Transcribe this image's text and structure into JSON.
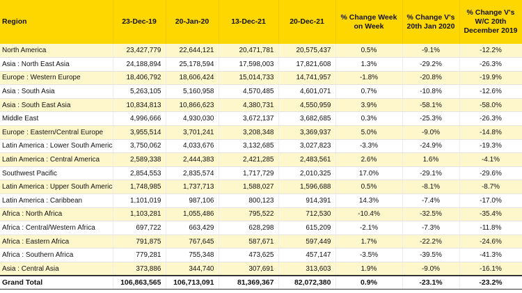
{
  "headers": {
    "region": "Region",
    "d1": "23-Dec-19",
    "d2": "20-Jan-20",
    "d3": "13-Dec-21",
    "d4": "20-Dec-21",
    "wk": "% Change Week on Week",
    "jan": "% Change V's 20th Jan 2020",
    "dec": "% Change V's W/C 20th December 2019"
  },
  "colors": {
    "header_bg": "#ffd700",
    "band": "#fff7cc"
  },
  "rows": [
    {
      "region": "North America",
      "d1": "23,427,779",
      "d2": "22,644,121",
      "d3": "20,471,781",
      "d4": "20,575,437",
      "wk": "0.5%",
      "jan": "-9.1%",
      "dec": "-12.2%"
    },
    {
      "region": "Asia : North East Asia",
      "d1": "24,188,894",
      "d2": "25,178,594",
      "d3": "17,598,003",
      "d4": "17,821,608",
      "wk": "1.3%",
      "jan": "-29.2%",
      "dec": "-26.3%"
    },
    {
      "region": "Europe : Western Europe",
      "d1": "18,406,792",
      "d2": "18,606,424",
      "d3": "15,014,733",
      "d4": "14,741,957",
      "wk": "-1.8%",
      "jan": "-20.8%",
      "dec": "-19.9%"
    },
    {
      "region": "Asia : South Asia",
      "d1": "5,263,105",
      "d2": "5,160,958",
      "d3": "4,570,485",
      "d4": "4,601,071",
      "wk": "0.7%",
      "jan": "-10.8%",
      "dec": "-12.6%"
    },
    {
      "region": "Asia : South East Asia",
      "d1": "10,834,813",
      "d2": "10,866,623",
      "d3": "4,380,731",
      "d4": "4,550,959",
      "wk": "3.9%",
      "jan": "-58.1%",
      "dec": "-58.0%"
    },
    {
      "region": "Middle East",
      "d1": "4,996,666",
      "d2": "4,930,030",
      "d3": "3,672,137",
      "d4": "3,682,685",
      "wk": "0.3%",
      "jan": "-25.3%",
      "dec": "-26.3%"
    },
    {
      "region": "Europe : Eastern/Central Europe",
      "d1": "3,955,514",
      "d2": "3,701,241",
      "d3": "3,208,348",
      "d4": "3,369,937",
      "wk": "5.0%",
      "jan": "-9.0%",
      "dec": "-14.8%"
    },
    {
      "region": "Latin America : Lower South America",
      "d1": "3,750,062",
      "d2": "4,033,676",
      "d3": "3,132,685",
      "d4": "3,027,823",
      "wk": "-3.3%",
      "jan": "-24.9%",
      "dec": "-19.3%"
    },
    {
      "region": "Latin America : Central America",
      "d1": "2,589,338",
      "d2": "2,444,383",
      "d3": "2,421,285",
      "d4": "2,483,561",
      "wk": "2.6%",
      "jan": "1.6%",
      "dec": "-4.1%"
    },
    {
      "region": "Southwest Pacific",
      "d1": "2,854,553",
      "d2": "2,835,574",
      "d3": "1,717,729",
      "d4": "2,010,325",
      "wk": "17.0%",
      "jan": "-29.1%",
      "dec": "-29.6%"
    },
    {
      "region": "Latin America : Upper South America",
      "d1": "1,748,985",
      "d2": "1,737,713",
      "d3": "1,588,027",
      "d4": "1,596,688",
      "wk": "0.5%",
      "jan": "-8.1%",
      "dec": "-8.7%"
    },
    {
      "region": "Latin America : Caribbean",
      "d1": "1,101,019",
      "d2": "987,106",
      "d3": "800,123",
      "d4": "914,391",
      "wk": "14.3%",
      "jan": "-7.4%",
      "dec": "-17.0%"
    },
    {
      "region": "Africa : North Africa",
      "d1": "1,103,281",
      "d2": "1,055,486",
      "d3": "795,522",
      "d4": "712,530",
      "wk": "-10.4%",
      "jan": "-32.5%",
      "dec": "-35.4%"
    },
    {
      "region": "Africa : Central/Western Africa",
      "d1": "697,722",
      "d2": "663,429",
      "d3": "628,298",
      "d4": "615,209",
      "wk": "-2.1%",
      "jan": "-7.3%",
      "dec": "-11.8%"
    },
    {
      "region": "Africa : Eastern Africa",
      "d1": "791,875",
      "d2": "767,645",
      "d3": "587,671",
      "d4": "597,449",
      "wk": "1.7%",
      "jan": "-22.2%",
      "dec": "-24.6%"
    },
    {
      "region": "Africa : Southern Africa",
      "d1": "779,281",
      "d2": "755,348",
      "d3": "473,625",
      "d4": "457,147",
      "wk": "-3.5%",
      "jan": "-39.5%",
      "dec": "-41.3%"
    },
    {
      "region": "Asia : Central Asia",
      "d1": "373,886",
      "d2": "344,740",
      "d3": "307,691",
      "d4": "313,603",
      "wk": "1.9%",
      "jan": "-9.0%",
      "dec": "-16.1%"
    }
  ],
  "total": {
    "region": "Grand Total",
    "d1": "106,863,565",
    "d2": "106,713,091",
    "d3": "81,369,367",
    "d4": "82,072,380",
    "wk": "0.9%",
    "jan": "-23.1%",
    "dec": "-23.2%"
  }
}
